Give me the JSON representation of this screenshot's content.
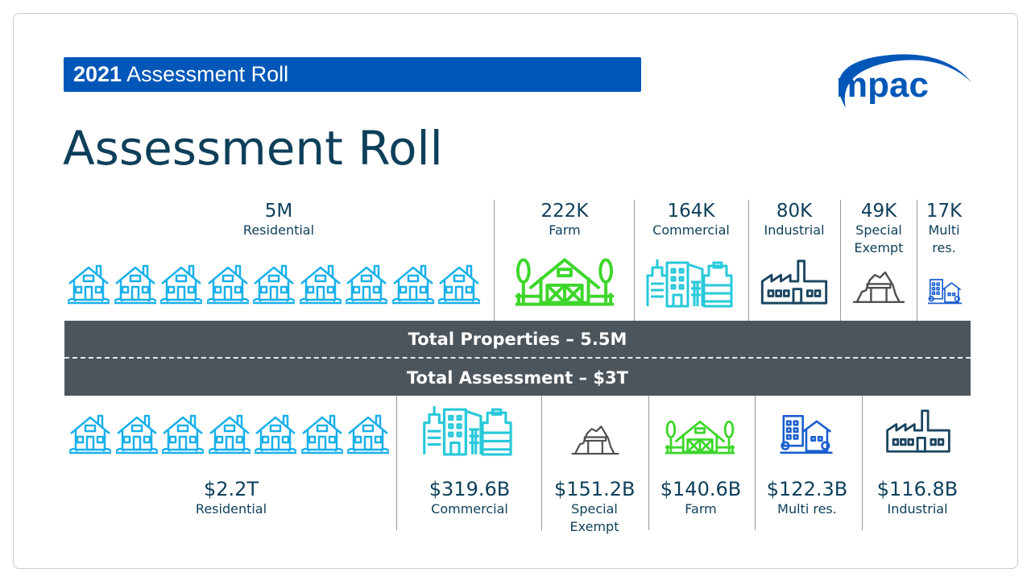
{
  "header": {
    "year": "2021",
    "banner_text": "Assessment Roll",
    "logo_text": "mpac",
    "title": "Assessment Roll"
  },
  "colors": {
    "banner": "#0057b8",
    "bar": "#4d555c",
    "residential": "#1ab0ea",
    "farm": "#3dd62a",
    "commercial": "#27c9d9",
    "industrial": "#1b4560",
    "special": "#4f4f4f",
    "multi": "#1b5fcf"
  },
  "properties": [
    {
      "value": "5M",
      "label": "Residential",
      "icon": "house-icon"
    },
    {
      "value": "222K",
      "label": "Farm",
      "icon": "barn-icon"
    },
    {
      "value": "164K",
      "label": "Commercial",
      "icon": "buildings-icon"
    },
    {
      "value": "80K",
      "label": "Industrial",
      "icon": "factory-icon"
    },
    {
      "value": "49K",
      "label": "Special Exempt",
      "icon": "mine-icon"
    },
    {
      "value": "17K",
      "label": "Multi res.",
      "icon": "apartment-icon"
    }
  ],
  "totals": {
    "properties": "Total Properties – 5.5M",
    "assessment": "Total Assessment – $3T"
  },
  "assessments": [
    {
      "value": "$2.2T",
      "label": "Residential",
      "icon": "house-icon"
    },
    {
      "value": "$319.6B",
      "label": "Commercial",
      "icon": "buildings-icon"
    },
    {
      "value": "$151.2B",
      "label": "Special Exempt",
      "icon": "mine-icon"
    },
    {
      "value": "$140.6B",
      "label": "Farm",
      "icon": "barn-icon"
    },
    {
      "value": "$122.3B",
      "label": "Multi res.",
      "icon": "apartment-icon"
    },
    {
      "value": "$116.8B",
      "label": "Industrial",
      "icon": "factory-icon"
    }
  ]
}
